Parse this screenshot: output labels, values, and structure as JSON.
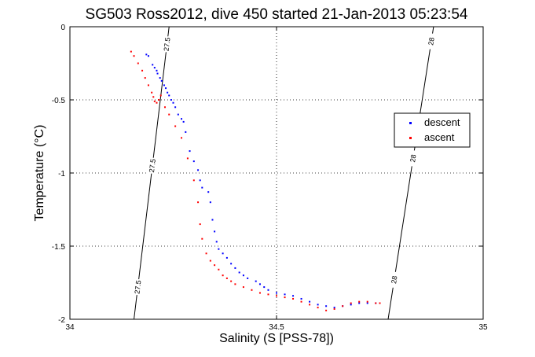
{
  "chart_data": {
    "type": "scatter",
    "title": "SG503 Ross2012, dive 450 started 21-Jan-2013 05:23:54",
    "xlabel": "Salinity (S [PSS-78])",
    "ylabel": "Temperature (°C)",
    "xlim": [
      34,
      35
    ],
    "ylim": [
      -2,
      0
    ],
    "x_ticks": [
      34,
      34.5,
      35
    ],
    "x_tick_labels": [
      "34",
      "34.5",
      "35"
    ],
    "y_ticks": [
      -2,
      -1.5,
      -1,
      -0.5,
      0
    ],
    "y_tick_labels": [
      "-2",
      "-1.5",
      "-1",
      "-0.5",
      "0"
    ],
    "grid": true,
    "legend_position": "right",
    "isopycnals": [
      {
        "label": "27.5",
        "s_top": 34.24,
        "s_bottom": 34.155,
        "label_positions_t": [
          -0.12,
          -0.95,
          -1.78
        ]
      },
      {
        "label": "28",
        "s_top": 34.88,
        "s_bottom": 34.77,
        "label_positions_t": [
          -0.1,
          -0.9,
          -1.73
        ]
      }
    ],
    "series": [
      {
        "name": "descent",
        "color": "#0000ff",
        "points": [
          [
            34.185,
            -0.19
          ],
          [
            34.19,
            -0.2
          ],
          [
            34.2,
            -0.26
          ],
          [
            34.205,
            -0.28
          ],
          [
            34.21,
            -0.3
          ],
          [
            34.212,
            -0.32
          ],
          [
            34.218,
            -0.35
          ],
          [
            34.222,
            -0.37
          ],
          [
            34.228,
            -0.4
          ],
          [
            34.232,
            -0.42
          ],
          [
            34.236,
            -0.45
          ],
          [
            34.24,
            -0.47
          ],
          [
            34.245,
            -0.5
          ],
          [
            34.25,
            -0.52
          ],
          [
            34.255,
            -0.55
          ],
          [
            34.262,
            -0.6
          ],
          [
            34.27,
            -0.63
          ],
          [
            34.275,
            -0.65
          ],
          [
            34.28,
            -0.72
          ],
          [
            34.29,
            -0.85
          ],
          [
            34.3,
            -0.92
          ],
          [
            34.31,
            -0.98
          ],
          [
            34.315,
            -1.05
          ],
          [
            34.32,
            -1.1
          ],
          [
            34.335,
            -1.13
          ],
          [
            34.34,
            -1.2
          ],
          [
            34.345,
            -1.32
          ],
          [
            34.35,
            -1.4
          ],
          [
            34.355,
            -1.47
          ],
          [
            34.36,
            -1.52
          ],
          [
            34.37,
            -1.55
          ],
          [
            34.38,
            -1.58
          ],
          [
            34.39,
            -1.62
          ],
          [
            34.4,
            -1.65
          ],
          [
            34.41,
            -1.68
          ],
          [
            34.42,
            -1.7
          ],
          [
            34.43,
            -1.72
          ],
          [
            34.45,
            -1.74
          ],
          [
            34.46,
            -1.76
          ],
          [
            34.47,
            -1.78
          ],
          [
            34.48,
            -1.8
          ],
          [
            34.5,
            -1.82
          ],
          [
            34.52,
            -1.83
          ],
          [
            34.54,
            -1.84
          ],
          [
            34.56,
            -1.86
          ],
          [
            34.58,
            -1.88
          ],
          [
            34.6,
            -1.9
          ],
          [
            34.62,
            -1.91
          ],
          [
            34.64,
            -1.92
          ],
          [
            34.66,
            -1.91
          ],
          [
            34.68,
            -1.9
          ],
          [
            34.7,
            -1.89
          ],
          [
            34.72,
            -1.89
          ],
          [
            34.74,
            -1.89
          ]
        ]
      },
      {
        "name": "ascent",
        "color": "#ff0000",
        "points": [
          [
            34.148,
            -0.17
          ],
          [
            34.155,
            -0.2
          ],
          [
            34.165,
            -0.25
          ],
          [
            34.175,
            -0.3
          ],
          [
            34.182,
            -0.35
          ],
          [
            34.19,
            -0.4
          ],
          [
            34.198,
            -0.45
          ],
          [
            34.202,
            -0.48
          ],
          [
            34.205,
            -0.51
          ],
          [
            34.21,
            -0.52
          ],
          [
            34.215,
            -0.5
          ],
          [
            34.22,
            -0.47
          ],
          [
            34.23,
            -0.55
          ],
          [
            34.24,
            -0.6
          ],
          [
            34.255,
            -0.68
          ],
          [
            34.27,
            -0.76
          ],
          [
            34.285,
            -0.9
          ],
          [
            34.3,
            -1.05
          ],
          [
            34.31,
            -1.2
          ],
          [
            34.315,
            -1.35
          ],
          [
            34.32,
            -1.45
          ],
          [
            34.33,
            -1.55
          ],
          [
            34.34,
            -1.6
          ],
          [
            34.35,
            -1.63
          ],
          [
            34.36,
            -1.66
          ],
          [
            34.37,
            -1.7
          ],
          [
            34.38,
            -1.72
          ],
          [
            34.39,
            -1.74
          ],
          [
            34.4,
            -1.76
          ],
          [
            34.42,
            -1.78
          ],
          [
            34.44,
            -1.8
          ],
          [
            34.46,
            -1.82
          ],
          [
            34.48,
            -1.83
          ],
          [
            34.5,
            -1.84
          ],
          [
            34.52,
            -1.85
          ],
          [
            34.54,
            -1.86
          ],
          [
            34.56,
            -1.88
          ],
          [
            34.58,
            -1.9
          ],
          [
            34.6,
            -1.92
          ],
          [
            34.62,
            -1.94
          ],
          [
            34.64,
            -1.93
          ],
          [
            34.66,
            -1.91
          ],
          [
            34.68,
            -1.89
          ],
          [
            34.7,
            -1.88
          ],
          [
            34.72,
            -1.88
          ],
          [
            34.74,
            -1.89
          ],
          [
            34.75,
            -1.89
          ]
        ]
      }
    ]
  }
}
